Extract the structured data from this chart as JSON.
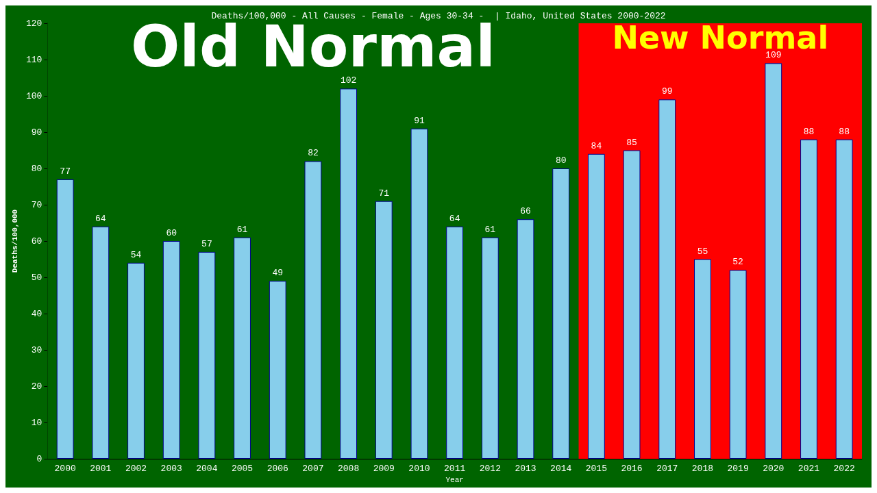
{
  "chart_data": {
    "type": "bar",
    "title": "Deaths/100,000 - All Causes - Female - Ages 30-34 -  | Idaho, United States 2000-2022",
    "xlabel": "Year",
    "ylabel": "Deaths/100,000",
    "categories": [
      "2000",
      "2001",
      "2002",
      "2003",
      "2004",
      "2005",
      "2006",
      "2007",
      "2008",
      "2009",
      "2010",
      "2011",
      "2012",
      "2013",
      "2014",
      "2015",
      "2016",
      "2017",
      "2018",
      "2019",
      "2020",
      "2021",
      "2022"
    ],
    "values": [
      77,
      64,
      54,
      60,
      57,
      61,
      49,
      82,
      102,
      71,
      91,
      64,
      61,
      66,
      80,
      84,
      85,
      99,
      55,
      52,
      109,
      88,
      88
    ],
    "color": "#87ceeb",
    "data_labels": true,
    "ylim": [
      0,
      120
    ],
    "yticks": [
      0,
      10,
      20,
      30,
      40,
      50,
      60,
      70,
      80,
      90,
      100,
      110,
      120
    ],
    "grid": false,
    "bands": [
      {
        "axis": "x",
        "from": "2000",
        "to": "2014",
        "label": "Old Normal",
        "color": "#006400"
      },
      {
        "axis": "x",
        "from": "2015",
        "to": "2022",
        "label": "New Normal",
        "color": "#ff0000"
      }
    ]
  }
}
